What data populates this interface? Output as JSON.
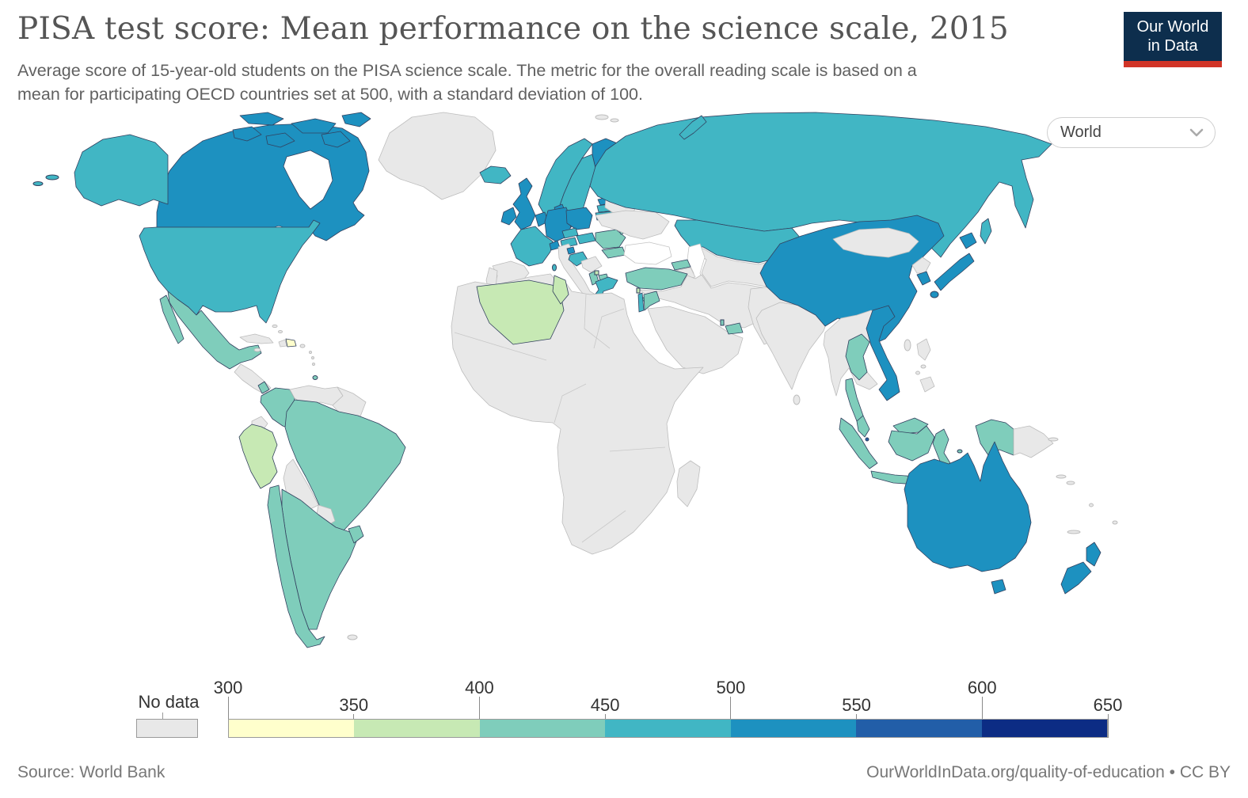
{
  "header": {
    "title": "PISA test score: Mean performance on the science scale, 2015",
    "subtitle_lines": [
      "Average score of 15-year-old students on the PISA science scale. The metric for the overall reading scale is based on a",
      "mean for participating OECD countries set at 500, with a standard deviation of 100."
    ],
    "logo": {
      "line1": "Our World",
      "line2": "in Data",
      "bg_color": "#0d2e4d",
      "accent_color": "#d13427"
    }
  },
  "controls": {
    "region_selector": {
      "value": "World"
    }
  },
  "footer": {
    "source": "Source: World Bank",
    "attribution": "OurWorldInData.org/quality-of-education • CC BY"
  },
  "chart_data": {
    "type": "choropleth_map",
    "title": "PISA test score: Mean performance on the science scale, 2015",
    "year": "2015",
    "legend": {
      "no_data": {
        "label": "No data",
        "color": "#e8e8e8"
      },
      "ticks": [
        "300",
        "350",
        "400",
        "450",
        "500",
        "550",
        "600",
        "650"
      ],
      "bins": [
        {
          "label": "300-350",
          "color": "#ffffcc"
        },
        {
          "label": "350-400",
          "color": "#c7e9b4"
        },
        {
          "label": "400-450",
          "color": "#7fcdbb"
        },
        {
          "label": "450-500",
          "color": "#41b6c4"
        },
        {
          "label": "500-550",
          "color": "#1d91c0"
        },
        {
          "label": "550-600",
          "color": "#225ea8"
        },
        {
          "label": "600-650",
          "color": "#0c2c84"
        }
      ]
    },
    "region_bins": {
      "greenland": "no-data",
      "canada": "500-550",
      "united-states": "450-500",
      "mexico": "400-450",
      "central-america": "no-data",
      "costa-rica": "400-450",
      "cuba": "no-data",
      "haiti": "no-data",
      "dominican-republic": "300-350",
      "jamaica": "no-data",
      "puerto-rico": "no-data",
      "lesser-antilles": "no-data",
      "bahamas": "no-data",
      "trinidad-and-tobago": "400-450",
      "colombia": "400-450",
      "venezuela": "no-data",
      "guyanas": "no-data",
      "ecuador": "no-data",
      "peru": "350-400",
      "brazil": "400-450",
      "bolivia": "no-data",
      "paraguay": "no-data",
      "chile": "400-450",
      "argentina": "400-450",
      "uruguay": "400-450",
      "falkland-islands": "no-data",
      "iceland": "450-500",
      "united-kingdom": "500-550",
      "ireland": "500-550",
      "norway": "450-500",
      "sweden": "450-500",
      "finland": "500-550",
      "denmark": "500-550",
      "estonia": "500-550",
      "latvia": "450-500",
      "lithuania": "450-500",
      "germany": "500-550",
      "poland": "500-550",
      "benelux": "500-550",
      "france": "450-500",
      "switzerland": "500-550",
      "austria": "450-500",
      "czechia": "450-500",
      "hungary-slovakia": "450-500",
      "slovenia": "500-550",
      "croatia": "450-500",
      "serbia-bosnia": "no-data",
      "albania-montenegro": "400-450",
      "kosovo": "350-400",
      "north-macedonia": "400-450",
      "romania": "400-450",
      "bulgaria": "400-450",
      "moldova": "400-450",
      "greece": "450-500",
      "ukraine": "no-data",
      "belarus": "no-data",
      "russia": "450-500",
      "svalbard": "no-data",
      "kazakhstan": "450-500",
      "central-asia": "no-data",
      "georgia": "400-450",
      "armenia-azerbaijan": "no-data",
      "turkey": "400-450",
      "cyprus": "400-450",
      "middle-east": "no-data",
      "arabian-peninsula": "no-data",
      "pakistan-afghanistan": "no-data",
      "israel": "450-500",
      "jordan": "400-450",
      "lebanon": "350-400",
      "united-arab-emirates": "400-450",
      "qatar": "400-450",
      "africa": "no-data",
      "algeria": "350-400",
      "tunisia": "350-400",
      "madagascar": "no-data",
      "india": "no-data",
      "sri-lanka": "no-data",
      "china": "500-550",
      "mongolia": "no-data",
      "north-korea": "no-data",
      "south-korea": "500-550",
      "japan": "500-550",
      "taiwan": "no-data",
      "mainland-southeast-asia": "no-data",
      "thailand": "400-450",
      "vietnam": "500-550",
      "malaysia": "400-450",
      "singapore": "550-600",
      "indonesia": "400-450",
      "philippines": "no-data",
      "papua-new-guinea": "no-data",
      "pacific-islands": "no-data",
      "australia": "500-550",
      "new-zealand": "500-550"
    }
  }
}
